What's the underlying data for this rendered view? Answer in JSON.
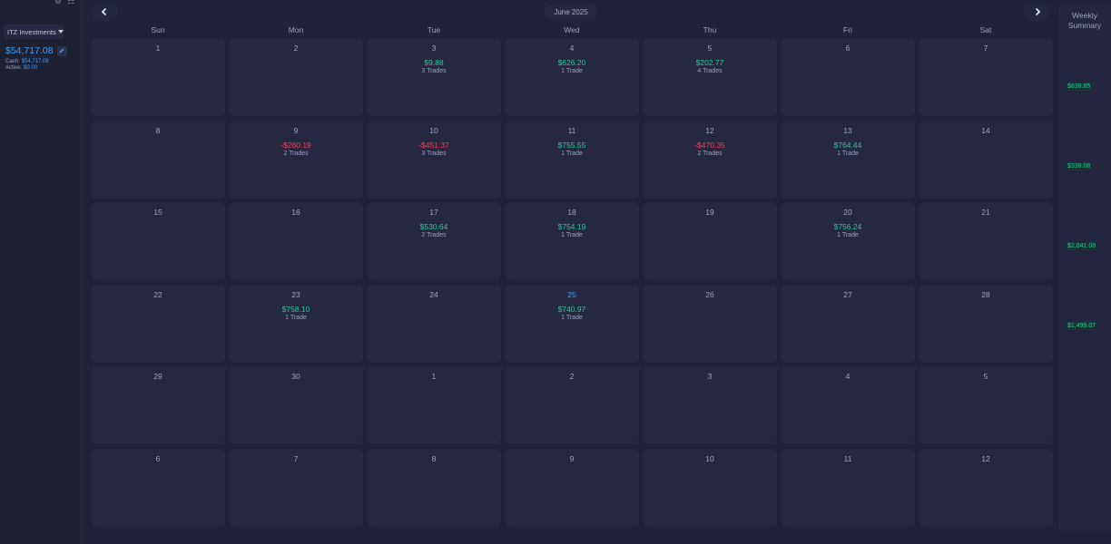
{
  "sidebar": {
    "top_icons": [
      "gear-icon",
      "columns-icon"
    ],
    "account": "ITZ Investments",
    "balance": "$54,717.08",
    "cash_label": "Cash:",
    "cash_value": "$54,717.08",
    "active_label": "Active:",
    "active_value": "$0.00"
  },
  "header": {
    "month": "June 2025",
    "prev_icon": "chevron-left-icon",
    "next_icon": "chevron-right-icon"
  },
  "weekdays": [
    "Sun",
    "Mon",
    "Tue",
    "Wed",
    "Thu",
    "Fri",
    "Sat"
  ],
  "weeks": [
    [
      {
        "day": "1"
      },
      {
        "day": "2"
      },
      {
        "day": "3",
        "pnl": "$9.88",
        "trades": "3 Trades",
        "status": "pos"
      },
      {
        "day": "4",
        "pnl": "$626.20",
        "trades": "1 Trade",
        "status": "pos"
      },
      {
        "day": "5",
        "pnl": "$202.77",
        "trades": "4 Trades",
        "status": "pos"
      },
      {
        "day": "6"
      },
      {
        "day": "7"
      }
    ],
    [
      {
        "day": "8"
      },
      {
        "day": "9",
        "pnl": "-$260.19",
        "trades": "2 Trades",
        "status": "neg"
      },
      {
        "day": "10",
        "pnl": "-$451.37",
        "trades": "3 Trades",
        "status": "neg"
      },
      {
        "day": "11",
        "pnl": "$755.55",
        "trades": "1 Trade",
        "status": "pos"
      },
      {
        "day": "12",
        "pnl": "-$470.35",
        "trades": "2 Trades",
        "status": "neg"
      },
      {
        "day": "13",
        "pnl": "$764.44",
        "trades": "1 Trade",
        "status": "pos"
      },
      {
        "day": "14"
      }
    ],
    [
      {
        "day": "15"
      },
      {
        "day": "16"
      },
      {
        "day": "17",
        "pnl": "$530.64",
        "trades": "2 Trades",
        "status": "pos"
      },
      {
        "day": "18",
        "pnl": "$754.19",
        "trades": "1 Trade",
        "status": "pos"
      },
      {
        "day": "19"
      },
      {
        "day": "20",
        "pnl": "$756.24",
        "trades": "1 Trade",
        "status": "pos"
      },
      {
        "day": "21"
      }
    ],
    [
      {
        "day": "22"
      },
      {
        "day": "23",
        "pnl": "$758.10",
        "trades": "1 Trade",
        "status": "pos"
      },
      {
        "day": "24"
      },
      {
        "day": "25",
        "pnl": "$740.97",
        "trades": "1 Trade",
        "status": "pos",
        "today": true
      },
      {
        "day": "26"
      },
      {
        "day": "27"
      },
      {
        "day": "28"
      }
    ],
    [
      {
        "day": "29"
      },
      {
        "day": "30"
      },
      {
        "day": "1"
      },
      {
        "day": "2"
      },
      {
        "day": "3"
      },
      {
        "day": "4"
      },
      {
        "day": "5"
      }
    ],
    [
      {
        "day": "6"
      },
      {
        "day": "7"
      },
      {
        "day": "8"
      },
      {
        "day": "9"
      },
      {
        "day": "10"
      },
      {
        "day": "11"
      },
      {
        "day": "12"
      }
    ]
  ],
  "weekly_summary": {
    "title_line1": "Weekly",
    "title_line2": "Summary",
    "totals": [
      "$838.85",
      "$338.08",
      "$2,041.08",
      "$1,499.07"
    ]
  },
  "colors": {
    "positive": "#2ec79a",
    "negative": "#ff3b5f",
    "accent": "#3ea1ff",
    "background": "#20223a",
    "cell": "#252840"
  }
}
